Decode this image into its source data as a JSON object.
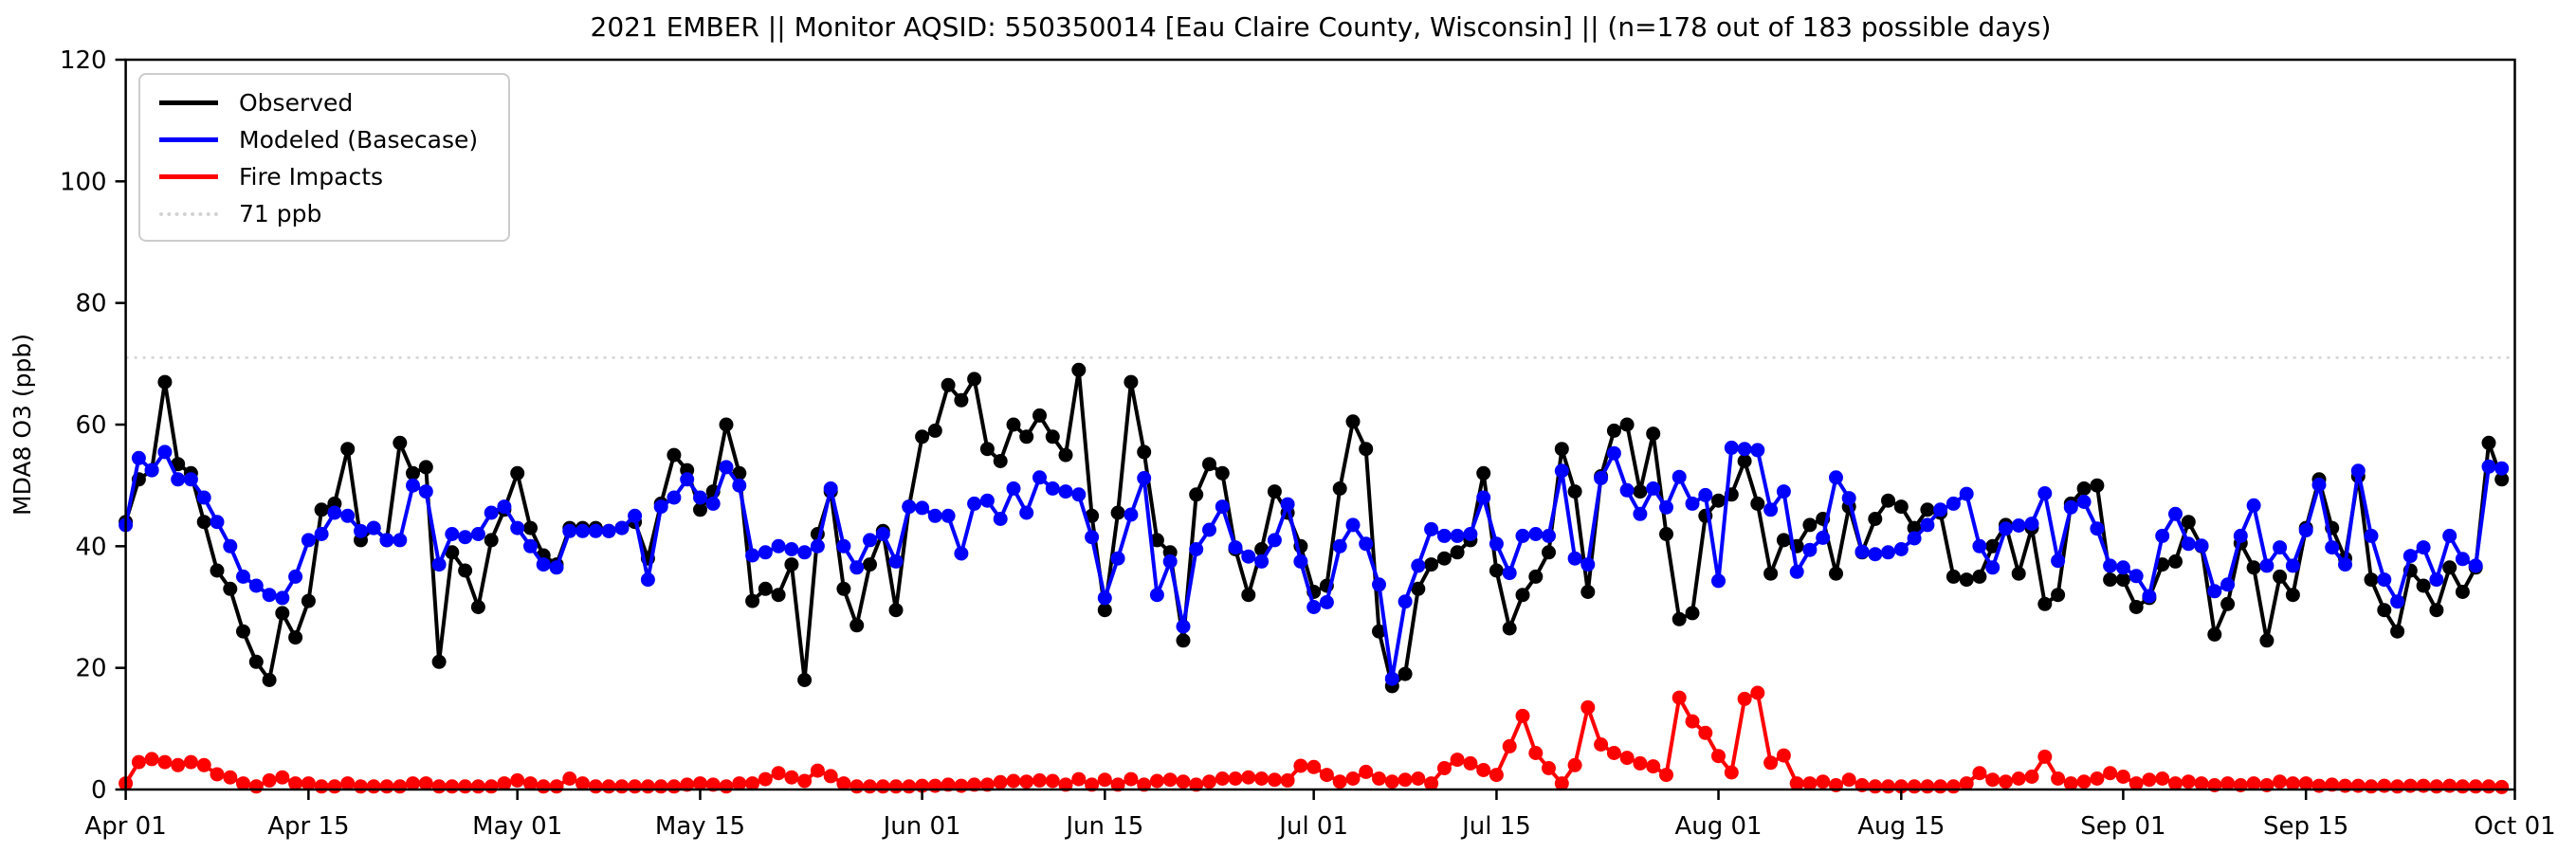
{
  "figure": {
    "title": "2021 EMBER || Monitor AQSID: 550350014 [Eau Claire County, Wisconsin] || (n=178 out of 183 possible days)"
  },
  "chart_data": {
    "type": "line",
    "title": "2021 EMBER || Monitor AQSID: 550350014 [Eau Claire County, Wisconsin] || (n=178 out of 183 possible days)",
    "xlabel": "",
    "ylabel": "MDA8 O3 (ppb)",
    "ylim": [
      0,
      120
    ],
    "yticks": [
      0,
      20,
      40,
      60,
      80,
      100,
      120
    ],
    "grid": false,
    "legend_position": "upper-left",
    "n_days": 183,
    "x_start_label": "Apr 01",
    "x_end_label": "Oct 01",
    "x_ticks": [
      {
        "label": "Apr 01",
        "day_index": 0
      },
      {
        "label": "Apr 15",
        "day_index": 14
      },
      {
        "label": "May 01",
        "day_index": 30
      },
      {
        "label": "May 15",
        "day_index": 44
      },
      {
        "label": "Jun 01",
        "day_index": 61
      },
      {
        "label": "Jun 15",
        "day_index": 75
      },
      {
        "label": "Jul 01",
        "day_index": 91
      },
      {
        "label": "Jul 15",
        "day_index": 105
      },
      {
        "label": "Aug 01",
        "day_index": 122
      },
      {
        "label": "Aug 15",
        "day_index": 136
      },
      {
        "label": "Sep 01",
        "day_index": 153
      },
      {
        "label": "Sep 15",
        "day_index": 167
      },
      {
        "label": "Oct 01",
        "day_index": 183
      }
    ],
    "reference_line": {
      "label": "71 ppb",
      "value": 71,
      "color": "#d3d3d3",
      "style": "dotted"
    },
    "legend": [
      {
        "label": "Observed",
        "color": "#000000",
        "style": "solid"
      },
      {
        "label": "Modeled (Basecase)",
        "color": "#0000ff",
        "style": "solid"
      },
      {
        "label": "Fire Impacts",
        "color": "#ff0000",
        "style": "solid"
      },
      {
        "label": "71 ppb",
        "color": "#d3d3d3",
        "style": "dotted"
      }
    ],
    "series": [
      {
        "name": "Observed",
        "color": "#000000",
        "values": [
          44,
          51,
          52.5,
          67,
          53.5,
          52,
          44,
          36,
          33,
          26,
          21,
          18,
          29,
          25,
          31,
          46,
          47,
          56,
          41,
          43,
          41,
          57,
          52,
          53,
          21,
          39,
          36,
          30,
          41,
          46,
          52,
          43,
          38.5,
          37,
          43,
          43,
          43,
          42.5,
          43,
          44,
          38,
          47,
          55,
          52.5,
          46,
          49,
          60,
          52,
          31,
          33,
          32,
          37,
          18,
          42,
          49,
          33,
          27,
          37,
          42.5,
          29.5,
          46.5,
          58,
          59,
          66.5,
          64,
          67.5,
          56,
          54,
          60,
          58,
          61.5,
          58,
          55,
          69,
          45,
          29.5,
          45.5,
          67,
          55.5,
          41,
          39,
          24.5,
          48.5,
          53.5,
          52,
          39.5,
          32,
          39.5,
          49,
          45.5,
          40,
          32.5,
          33.5,
          49.5,
          60.5,
          56,
          26,
          17,
          19,
          33,
          37,
          38,
          39,
          41,
          52,
          36,
          26.5,
          32,
          35,
          39,
          56,
          49,
          32.5,
          51.5,
          59,
          60,
          49,
          58.5,
          42,
          28,
          29,
          45,
          47.5,
          48.5,
          54,
          47,
          35.5,
          41,
          40,
          43.5,
          44.5,
          35.5,
          46.5,
          39,
          44.5,
          47.5,
          46.5,
          43,
          46,
          45.5,
          35,
          34.5,
          35,
          40,
          43.5,
          35.5,
          43,
          30.5,
          32,
          47,
          49.5,
          50,
          34.5,
          34.5,
          30,
          31.5,
          37,
          37.5,
          44,
          40,
          25.5,
          30.5,
          40.5,
          36.5,
          24.5,
          35,
          32,
          43,
          51,
          43,
          38,
          51.5,
          34.5,
          29.5,
          26,
          36,
          33.5,
          29.5,
          36.5,
          32.5,
          36.5,
          57,
          51
        ]
      },
      {
        "name": "Modeled (Basecase)",
        "color": "#0000ff",
        "values": [
          43.5,
          54.5,
          52.5,
          55.5,
          51,
          51,
          48,
          44,
          40,
          35,
          33.5,
          32,
          31.5,
          35,
          41,
          42,
          45.5,
          45,
          42.5,
          43,
          41,
          41,
          50,
          49,
          37,
          42,
          41.5,
          42,
          45.5,
          46.5,
          43,
          40,
          37,
          36.5,
          42.5,
          42.5,
          42.5,
          42.5,
          43,
          45,
          34.5,
          46.5,
          48,
          51,
          48,
          47,
          53,
          50,
          38.5,
          39,
          40,
          39.5,
          39,
          40,
          49.5,
          40,
          36.5,
          41,
          42,
          37.5,
          46.5,
          46.3,
          45,
          45,
          38.8,
          47,
          47.5,
          44.5,
          49.5,
          45.5,
          51.3,
          49.5,
          49,
          48.5,
          41.5,
          31.5,
          38,
          45.2,
          51.2,
          32,
          37.5,
          26.8,
          39.5,
          42.7,
          46.5,
          39.8,
          38.3,
          37.5,
          41,
          46.9,
          37.5,
          30,
          30.8,
          40,
          43.5,
          40.4,
          33.7,
          18.2,
          30.9,
          36.8,
          42.8,
          41.7,
          41.7,
          42,
          48,
          40.4,
          35.6,
          41.7,
          42,
          41.7,
          52.4,
          38,
          37,
          51.2,
          55.3,
          49.2,
          45.3,
          49.5,
          46.4,
          51.4,
          47,
          48.4,
          34.3,
          56.2,
          56,
          55.8,
          46,
          49,
          35.8,
          39.4,
          41.4,
          51.3,
          47.9,
          39.1,
          38.7,
          39,
          39.5,
          41.3,
          43.5,
          46,
          47,
          48.6,
          40,
          36.5,
          42.9,
          43.4,
          43.7,
          48.7,
          37.6,
          46.4,
          47.3,
          42.9,
          36.8,
          36.5,
          35.1,
          31.8,
          41.7,
          45.3,
          40.4,
          40.1,
          32.6,
          33.7,
          41.7,
          46.7,
          36.8,
          39.8,
          36.8,
          42.6,
          50.1,
          39.8,
          37,
          52.4,
          41.7,
          34.5,
          30.9,
          38.4,
          39.8,
          34.5,
          41.7,
          37.9,
          36.8,
          53.1,
          52.8
        ]
      },
      {
        "name": "Fire Impacts",
        "color": "#ff0000",
        "values": [
          1,
          4.5,
          5,
          4.5,
          4,
          4.5,
          4,
          2.5,
          2,
          1,
          0.5,
          1.5,
          2,
          1,
          1,
          0.5,
          0.5,
          1,
          0.5,
          0.5,
          0.5,
          0.5,
          1,
          1,
          0.5,
          0.5,
          0.5,
          0.5,
          0.5,
          1,
          1.5,
          1,
          0.5,
          0.5,
          1.8,
          1,
          0.5,
          0.5,
          0.5,
          0.5,
          0.5,
          0.5,
          0.5,
          0.8,
          1,
          0.8,
          0.5,
          1,
          1,
          1.7,
          2.7,
          2,
          1.4,
          3.1,
          2.2,
          1,
          0.5,
          0.5,
          0.5,
          0.5,
          0.5,
          0.6,
          0.6,
          0.8,
          0.6,
          0.8,
          0.8,
          1.2,
          1.4,
          1.3,
          1.5,
          1.4,
          0.8,
          1.7,
          0.8,
          1.6,
          0.8,
          1.7,
          0.8,
          1.4,
          1.6,
          1.3,
          0.8,
          1.3,
          1.8,
          1.8,
          2,
          1.8,
          1.6,
          1.5,
          3.9,
          3.7,
          2.4,
          1.3,
          1.8,
          2.9,
          1.8,
          1.3,
          1.6,
          1.8,
          1,
          3.5,
          4.9,
          4.3,
          3.2,
          2.4,
          7.1,
          12.1,
          6,
          3.5,
          1,
          4,
          13.5,
          7.4,
          6,
          5.2,
          4.3,
          3.8,
          2.4,
          15.1,
          11.2,
          9.3,
          5.5,
          2.8,
          14.9,
          15.9,
          4.4,
          5.6,
          1,
          1,
          1.3,
          0.7,
          1.6,
          0.7,
          0.5,
          0.5,
          0.5,
          0.5,
          0.5,
          0.5,
          0.5,
          1,
          2.7,
          1.6,
          1.3,
          1.8,
          2.1,
          5.4,
          1.8,
          1,
          1.3,
          1.8,
          2.7,
          2.1,
          1,
          1.6,
          1.8,
          1,
          1.3,
          1,
          0.7,
          1,
          0.7,
          1,
          0.7,
          1.3,
          1,
          1,
          0.6,
          0.8,
          0.6,
          0.6,
          0.5,
          0.6,
          0.5,
          0.6,
          0.6,
          0.5,
          0.6,
          0.5,
          0.5,
          0.5,
          0.4
        ]
      }
    ]
  }
}
